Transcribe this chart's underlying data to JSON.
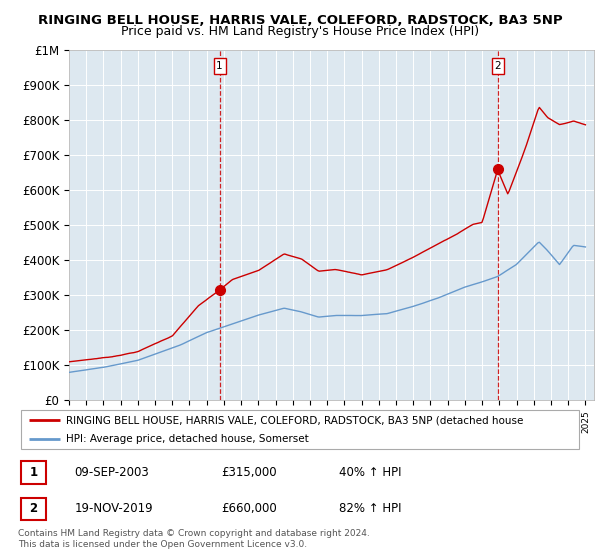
{
  "title": "RINGING BELL HOUSE, HARRIS VALE, COLEFORD, RADSTOCK, BA3 5NP",
  "subtitle": "Price paid vs. HM Land Registry's House Price Index (HPI)",
  "ylim": [
    0,
    1000000
  ],
  "yticks": [
    0,
    100000,
    200000,
    300000,
    400000,
    500000,
    600000,
    700000,
    800000,
    900000,
    1000000
  ],
  "ytick_labels": [
    "£0",
    "£100K",
    "£200K",
    "£300K",
    "£400K",
    "£500K",
    "£600K",
    "£700K",
    "£800K",
    "£900K",
    "£1M"
  ],
  "sale1_year": 2003.75,
  "sale1_price": 315000,
  "sale2_year": 2019.9,
  "sale2_price": 660000,
  "red_line_color": "#cc0000",
  "blue_line_color": "#6699cc",
  "chart_bg_color": "#dde8f0",
  "grid_color": "#ffffff",
  "legend_box_entry1": "RINGING BELL HOUSE, HARRIS VALE, COLEFORD, RADSTOCK, BA3 5NP (detached house",
  "legend_box_entry2": "HPI: Average price, detached house, Somerset",
  "table_row1": [
    "1",
    "09-SEP-2003",
    "£315,000",
    "40% ↑ HPI"
  ],
  "table_row2": [
    "2",
    "19-NOV-2019",
    "£660,000",
    "82% ↑ HPI"
  ],
  "footnote": "Contains HM Land Registry data © Crown copyright and database right 2024.\nThis data is licensed under the Open Government Licence v3.0.",
  "title_fontsize": 9.5,
  "subtitle_fontsize": 9,
  "axis_fontsize": 8.5,
  "xlim_start": 1995.0,
  "xlim_end": 2025.5
}
